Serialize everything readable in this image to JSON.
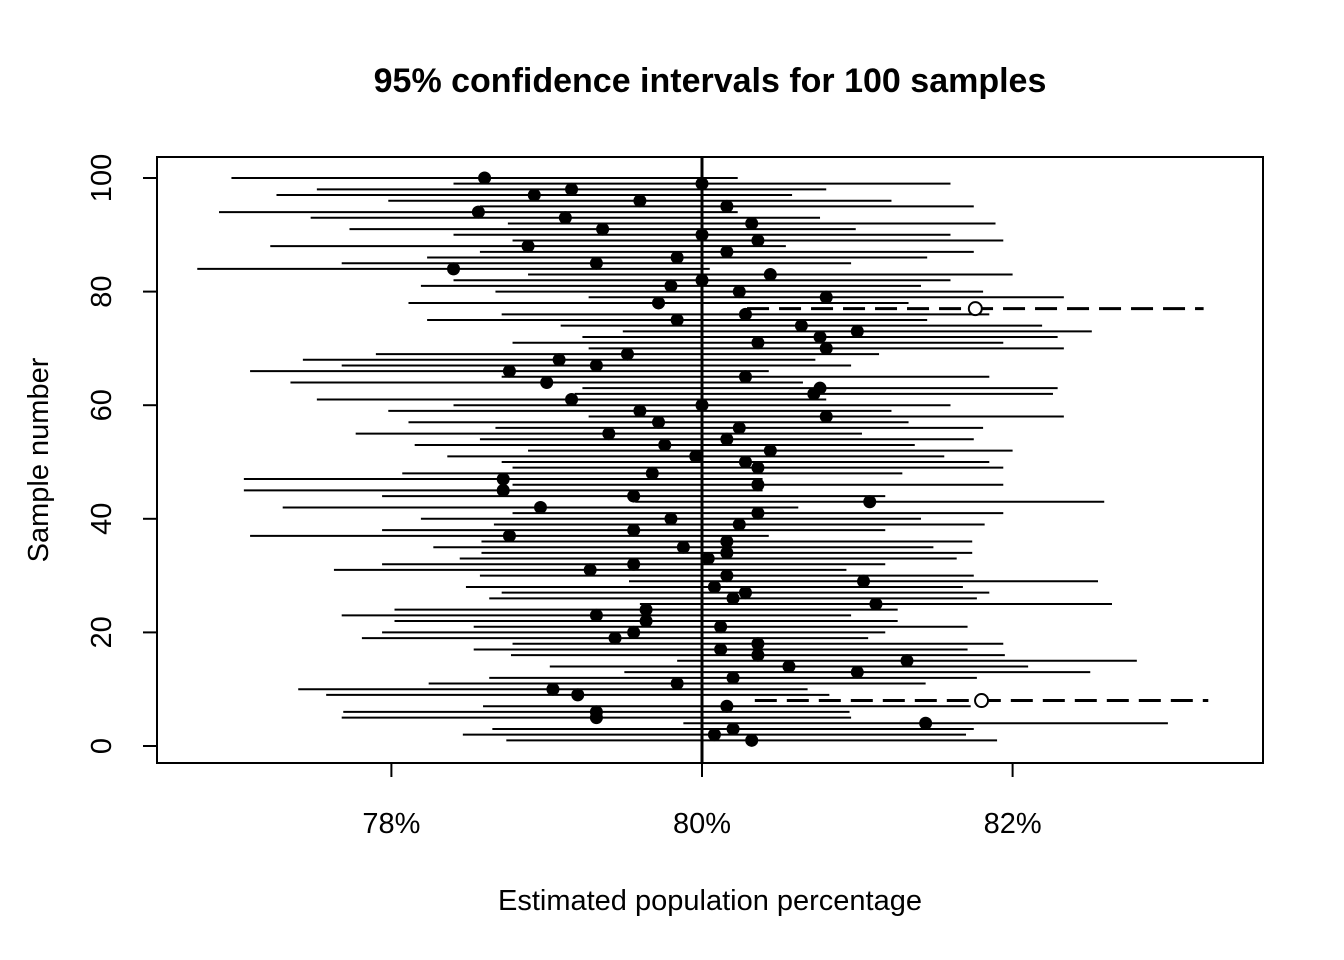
{
  "chart_data": {
    "type": "scatter",
    "subtype": "confidence-interval-plot",
    "title": "95% confidence intervals for 100 samples",
    "xlabel": "Estimated population percentage",
    "ylabel": "Sample number",
    "xlim": [
      76.6,
      83.7
    ],
    "ylim": [
      -3,
      104
    ],
    "x_ticks": [
      78,
      80,
      82
    ],
    "x_tick_labels": [
      "78%",
      "80%",
      "82%"
    ],
    "y_ticks": [
      0,
      20,
      40,
      60,
      80,
      100
    ],
    "y_tick_labels": [
      "0",
      "20",
      "40",
      "60",
      "80",
      "100"
    ],
    "reference_line": 80,
    "grid": false,
    "legend": "none",
    "misses": [
      8,
      77
    ],
    "estimates": [
      80.32,
      80.08,
      80.2,
      81.44,
      79.32,
      79.32,
      80.16,
      81.8,
      79.2,
      79.04,
      79.84,
      80.2,
      81.0,
      80.56,
      81.32,
      80.36,
      80.12,
      80.36,
      79.44,
      79.56,
      80.12,
      79.64,
      79.32,
      79.64,
      81.12,
      80.2,
      80.28,
      80.08,
      81.04,
      80.16,
      79.28,
      79.56,
      80.04,
      80.16,
      79.88,
      80.16,
      78.76,
      79.56,
      80.24,
      79.8,
      80.36,
      78.96,
      81.08,
      79.56,
      78.72,
      80.36,
      78.72,
      79.68,
      80.36,
      80.28,
      79.96,
      80.44,
      79.76,
      80.16,
      79.4,
      80.24,
      79.72,
      80.8,
      79.6,
      80.0,
      79.16,
      80.72,
      80.76,
      79.0,
      80.28,
      78.76,
      79.32,
      79.08,
      79.52,
      80.8,
      80.36,
      80.76,
      81.0,
      80.64,
      79.84,
      80.28,
      81.76,
      79.72,
      80.8,
      80.24,
      79.8,
      80.0,
      80.44,
      78.4,
      79.32,
      79.84,
      80.16,
      78.88,
      80.36,
      80.0,
      79.36,
      80.32,
      79.12,
      78.56,
      80.16,
      79.6,
      78.92,
      79.16,
      80.0,
      78.6
    ],
    "half_widths": [
      1.58,
      1.62,
      1.55,
      1.56,
      1.64,
      1.63,
      1.57,
      1.46,
      1.62,
      1.64,
      1.6,
      1.57,
      1.5,
      1.54,
      1.48,
      1.59,
      1.59,
      1.58,
      1.63,
      1.62,
      1.59,
      1.62,
      1.64,
      1.62,
      1.52,
      1.57,
      1.57,
      1.6,
      1.51,
      1.59,
      1.65,
      1.62,
      1.6,
      1.58,
      1.61,
      1.58,
      1.67,
      1.62,
      1.58,
      1.61,
      1.58,
      1.66,
      1.51,
      1.62,
      1.67,
      1.58,
      1.67,
      1.61,
      1.58,
      1.57,
      1.6,
      1.56,
      1.61,
      1.59,
      1.63,
      1.57,
      1.61,
      1.53,
      1.62,
      1.6,
      1.64,
      1.54,
      1.53,
      1.65,
      1.57,
      1.67,
      1.64,
      1.65,
      1.62,
      1.53,
      1.58,
      1.53,
      1.51,
      1.55,
      1.61,
      1.57,
      1.47,
      1.61,
      1.53,
      1.57,
      1.61,
      1.6,
      1.56,
      1.65,
      1.64,
      1.61,
      1.59,
      1.66,
      1.58,
      1.6,
      1.63,
      1.57,
      1.64,
      1.67,
      1.59,
      1.62,
      1.66,
      1.64,
      1.6,
      1.63
    ]
  }
}
